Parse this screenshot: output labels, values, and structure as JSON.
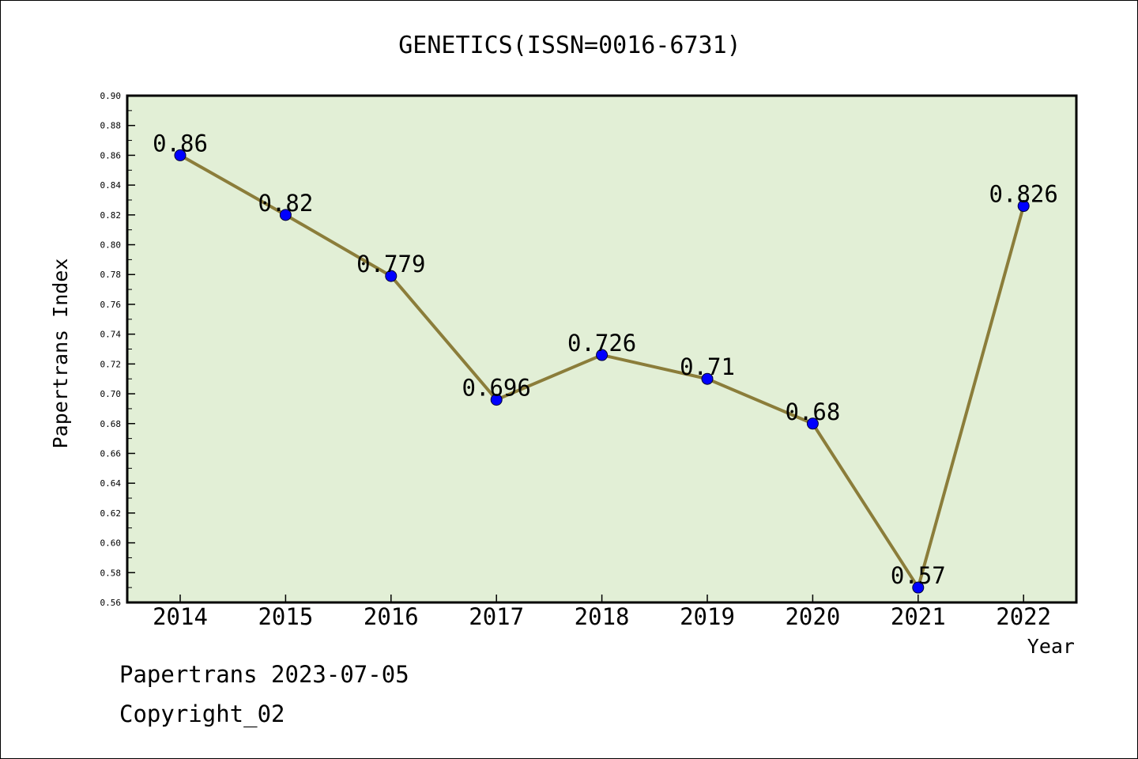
{
  "chart_data": {
    "type": "line",
    "title": "GENETICS(ISSN=0016-6731)",
    "xlabel": "Year",
    "ylabel": "Papertrans Index",
    "categories": [
      "2014",
      "2015",
      "2016",
      "2017",
      "2018",
      "2019",
      "2020",
      "2021",
      "2022"
    ],
    "series": [
      {
        "values": [
          0.86,
          0.82,
          0.779,
          0.696,
          0.726,
          0.71,
          0.68,
          0.57,
          0.826
        ],
        "data_labels": [
          "0.86",
          "0.82",
          "0.779",
          "0.696",
          "0.726",
          "0.71",
          "0.68",
          "0.57",
          "0.826"
        ]
      }
    ],
    "ylim": [
      0.56,
      0.9
    ],
    "y_ticks": [
      "0.56",
      "0.58",
      "0.60",
      "0.62",
      "0.64",
      "0.66",
      "0.68",
      "0.70",
      "0.72",
      "0.74",
      "0.76",
      "0.78",
      "0.80",
      "0.82",
      "0.84",
      "0.86",
      "0.88",
      "0.90"
    ],
    "grid": false,
    "colors": {
      "plot_background": "#e2efd6",
      "line": "#8b7d3a",
      "marker": "#0000ff",
      "axis": "#000000"
    }
  },
  "footer": {
    "line1": "Papertrans 2023-07-05",
    "line2": "Copyright_02"
  }
}
